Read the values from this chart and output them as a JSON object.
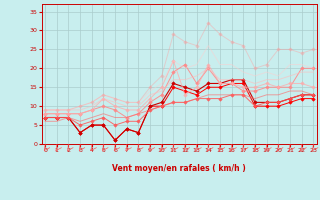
{
  "x": [
    0,
    1,
    2,
    3,
    4,
    5,
    6,
    7,
    8,
    9,
    10,
    11,
    12,
    13,
    14,
    15,
    16,
    17,
    18,
    19,
    20,
    21,
    22,
    23
  ],
  "series": [
    {
      "color": "#FF0000",
      "alpha": 1.0,
      "linewidth": 0.7,
      "marker": "D",
      "markersize": 1.8,
      "y": [
        7,
        7,
        7,
        3,
        5,
        5,
        1,
        4,
        3,
        10,
        10,
        15,
        14,
        13,
        15,
        15,
        16,
        16,
        10,
        10,
        10,
        11,
        12,
        12
      ]
    },
    {
      "color": "#CC0000",
      "alpha": 1.0,
      "linewidth": 0.8,
      "marker": "D",
      "markersize": 1.8,
      "y": [
        7,
        7,
        7,
        3,
        5,
        5,
        1,
        4,
        3,
        10,
        11,
        16,
        15,
        14,
        16,
        16,
        17,
        17,
        11,
        11,
        11,
        12,
        13,
        13
      ]
    },
    {
      "color": "#FF8888",
      "alpha": 0.9,
      "linewidth": 0.7,
      "marker": "D",
      "markersize": 1.8,
      "y": [
        8,
        8,
        8,
        8,
        9,
        10,
        9,
        7,
        8,
        11,
        13,
        19,
        21,
        16,
        20,
        16,
        16,
        14,
        14,
        15,
        15,
        15,
        20,
        20
      ]
    },
    {
      "color": "#FF5555",
      "alpha": 0.85,
      "linewidth": 0.7,
      "marker": "D",
      "markersize": 1.8,
      "y": [
        7,
        7,
        7,
        5,
        6,
        7,
        5,
        6,
        6,
        9,
        10,
        11,
        11,
        12,
        12,
        12,
        13,
        13,
        10,
        11,
        11,
        12,
        13,
        13
      ]
    },
    {
      "color": "#FFAAAA",
      "alpha": 0.75,
      "linewidth": 0.7,
      "marker": "D",
      "markersize": 1.8,
      "y": [
        8,
        8,
        8,
        8,
        9,
        12,
        10,
        9,
        9,
        12,
        15,
        22,
        13,
        15,
        21,
        16,
        16,
        15,
        15,
        16,
        15,
        16,
        16,
        15
      ]
    },
    {
      "color": "#FF6666",
      "alpha": 0.6,
      "linewidth": 0.7,
      "marker": null,
      "markersize": 0,
      "y": [
        6,
        6,
        7,
        6,
        7,
        8,
        7,
        7,
        8,
        9,
        10,
        11,
        11,
        12,
        13,
        13,
        13,
        13,
        12,
        13,
        13,
        14,
        14,
        13
      ]
    },
    {
      "color": "#FFBBBB",
      "alpha": 0.6,
      "linewidth": 0.7,
      "marker": null,
      "markersize": 0,
      "y": [
        9,
        9,
        9,
        9,
        10,
        12,
        11,
        10,
        10,
        13,
        14,
        17,
        17,
        18,
        20,
        17,
        17,
        17,
        16,
        17,
        17,
        18,
        19,
        19
      ]
    },
    {
      "color": "#FFCCCC",
      "alpha": 0.5,
      "linewidth": 0.7,
      "marker": null,
      "markersize": 0,
      "y": [
        9,
        9,
        9,
        10,
        11,
        13,
        12,
        11,
        11,
        14,
        16,
        22,
        20,
        21,
        26,
        21,
        21,
        19,
        18,
        19,
        18,
        21,
        21,
        20
      ]
    },
    {
      "color": "#FF9999",
      "alpha": 0.4,
      "linewidth": 0.7,
      "marker": "D",
      "markersize": 1.8,
      "y": [
        9,
        9,
        9,
        10,
        11,
        13,
        12,
        11,
        11,
        15,
        18,
        29,
        27,
        26,
        32,
        29,
        27,
        26,
        20,
        21,
        25,
        25,
        24,
        25
      ]
    }
  ],
  "xlim": [
    -0.3,
    23.3
  ],
  "ylim": [
    0,
    37
  ],
  "yticks": [
    0,
    5,
    10,
    15,
    20,
    25,
    30,
    35
  ],
  "xticks": [
    0,
    1,
    2,
    3,
    4,
    5,
    6,
    7,
    8,
    9,
    10,
    11,
    12,
    13,
    14,
    15,
    16,
    17,
    18,
    19,
    20,
    21,
    22,
    23
  ],
  "xlabel": "Vent moyen/en rafales ( km/h )",
  "bg_color": "#C8EEEE",
  "grid_color": "#AACCCC",
  "axis_color": "#CC0000",
  "label_color": "#CC0000",
  "tick_color": "#CC0000",
  "arrow_color": "#FF5555"
}
